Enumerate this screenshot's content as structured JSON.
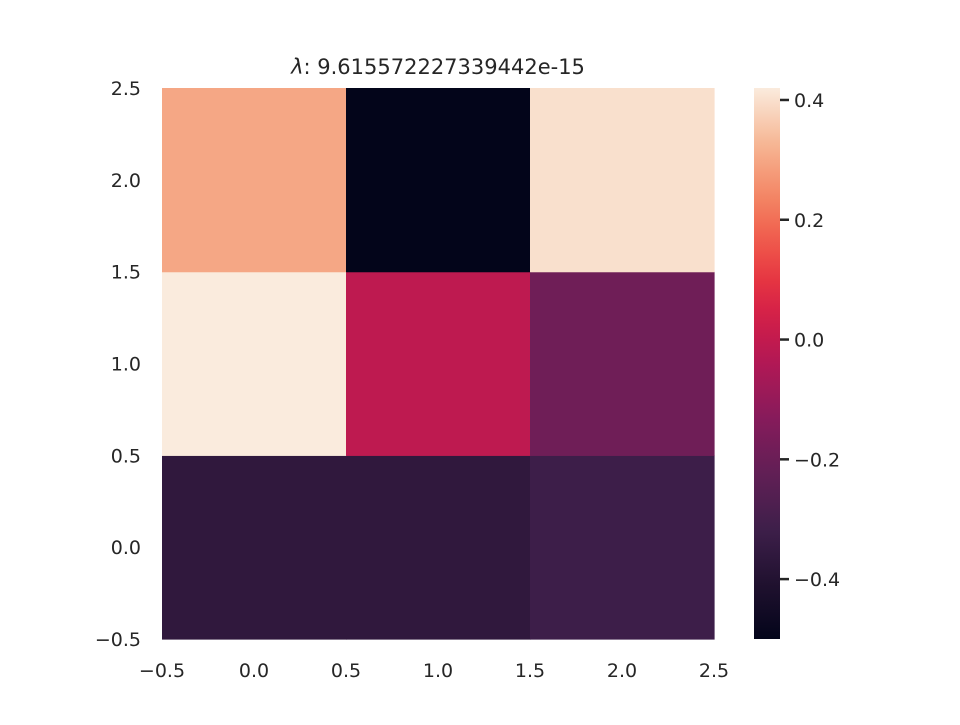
{
  "chart_data": {
    "type": "heatmap",
    "title": "λ: 9.615572227339442e-15",
    "title_symbol": "λ",
    "title_rest": ": 9.615572227339442e-15",
    "xlabel": "",
    "ylabel": "",
    "x_ticks": [
      "−0.5",
      "0.0",
      "0.5",
      "1.0",
      "1.5",
      "2.0",
      "2.5"
    ],
    "y_ticks": [
      "−0.5",
      "0.0",
      "0.5",
      "1.0",
      "1.5",
      "2.0",
      "2.5"
    ],
    "x_tick_values": [
      -0.5,
      0.0,
      0.5,
      1.0,
      1.5,
      2.0,
      2.5
    ],
    "y_tick_values": [
      -0.5,
      0.0,
      0.5,
      1.0,
      1.5,
      2.0,
      2.5
    ],
    "xlim": [
      -0.5,
      2.5
    ],
    "ylim": [
      -0.5,
      2.5
    ],
    "rows_from_bottom": [
      [
        -0.36,
        -0.36,
        -0.32
      ],
      [
        0.42,
        -0.01,
        -0.19
      ],
      [
        0.3,
        -0.5,
        0.4
      ]
    ],
    "vmin": -0.5,
    "vmax": 0.42,
    "colormap": "rocket",
    "colorbar_ticks": [
      0.4,
      0.2,
      0.0,
      -0.2,
      -0.4
    ],
    "colorbar_tick_labels": [
      "0.4",
      "0.2",
      "0.0",
      "−0.2",
      "−0.4"
    ],
    "grid": false
  }
}
